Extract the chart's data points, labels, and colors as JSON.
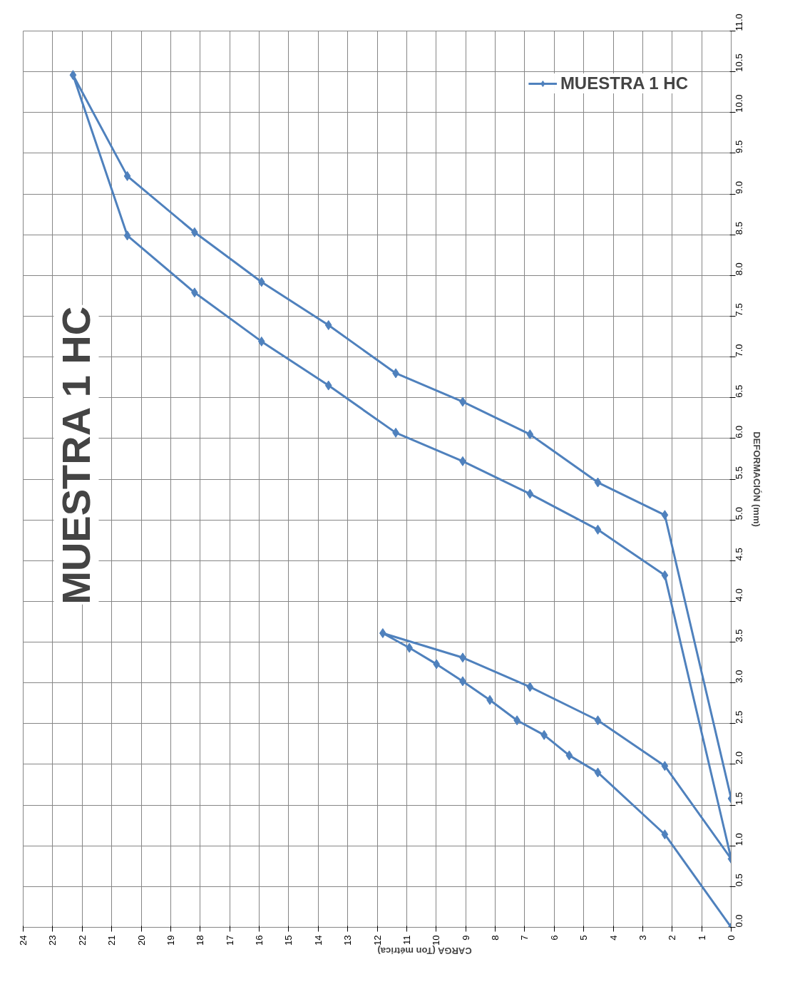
{
  "chart_data": {
    "type": "line",
    "title": "MUESTRA 1 HC",
    "xlabel": "CARGA (Ton métrica)",
    "ylabel": "DEFORMACIÓN (mm)",
    "xlim": [
      24,
      0
    ],
    "xticks": [
      0,
      1,
      2,
      3,
      4,
      5,
      6,
      7,
      8,
      9,
      10,
      11,
      12,
      13,
      14,
      15,
      16,
      17,
      18,
      19,
      20,
      21,
      22,
      23,
      24
    ],
    "ylim": [
      0,
      11
    ],
    "yticks": [
      {
        "value": 0,
        "label": "0.0"
      },
      {
        "value": 0.5,
        "label": "0.5"
      },
      {
        "value": 1,
        "label": "1.0"
      },
      {
        "value": 1.5,
        "label": "1.5"
      },
      {
        "value": 2,
        "label": "2.0"
      },
      {
        "value": 2.5,
        "label": "2.5"
      },
      {
        "value": 3,
        "label": "3.0"
      },
      {
        "value": 3.5,
        "label": "3.5"
      },
      {
        "value": 4,
        "label": "4.0"
      },
      {
        "value": 4.5,
        "label": "4.5"
      },
      {
        "value": 5,
        "label": "5.0"
      },
      {
        "value": 5.5,
        "label": "5.5"
      },
      {
        "value": 6,
        "label": "6.0"
      },
      {
        "value": 6.5,
        "label": "6.5"
      },
      {
        "value": 7,
        "label": "7.0"
      },
      {
        "value": 7.5,
        "label": "7.5"
      },
      {
        "value": 8,
        "label": "8.0"
      },
      {
        "value": 8.5,
        "label": "8.5"
      },
      {
        "value": 9,
        "label": "9.0"
      },
      {
        "value": 9.5,
        "label": "9.5"
      },
      {
        "value": 10,
        "label": "10.0"
      },
      {
        "value": 10.5,
        "label": "10.5"
      },
      {
        "value": 11,
        "label": "11.0"
      }
    ],
    "grid": true,
    "legend": "top right",
    "marker": "diamond",
    "line_style": "solid",
    "series": [
      {
        "name": "MUESTRA 1 HC",
        "color": "#4f81bd",
        "x": [
          0,
          2.25,
          4.52,
          5.49,
          6.34,
          7.26,
          8.18,
          9.1,
          9.99,
          10.91,
          11.81,
          9.1,
          6.82,
          4.52,
          2.25,
          0,
          2.25,
          4.52,
          6.82,
          9.1,
          11.37,
          13.65,
          15.92,
          18.19,
          20.47,
          22.31,
          20.47,
          18.19,
          15.92,
          13.65,
          11.37,
          9.1,
          6.82,
          4.52,
          2.25,
          0
        ],
        "values": [
          0,
          1.14,
          1.9,
          2.11,
          2.36,
          2.54,
          2.79,
          3.02,
          3.23,
          3.43,
          3.61,
          3.31,
          2.95,
          2.54,
          1.98,
          0.84,
          4.32,
          4.88,
          5.32,
          5.72,
          6.07,
          6.65,
          7.19,
          7.79,
          8.49,
          10.46,
          9.22,
          8.53,
          7.92,
          7.39,
          6.8,
          6.45,
          6.05,
          5.46,
          5.06,
          1.58
        ]
      }
    ]
  }
}
